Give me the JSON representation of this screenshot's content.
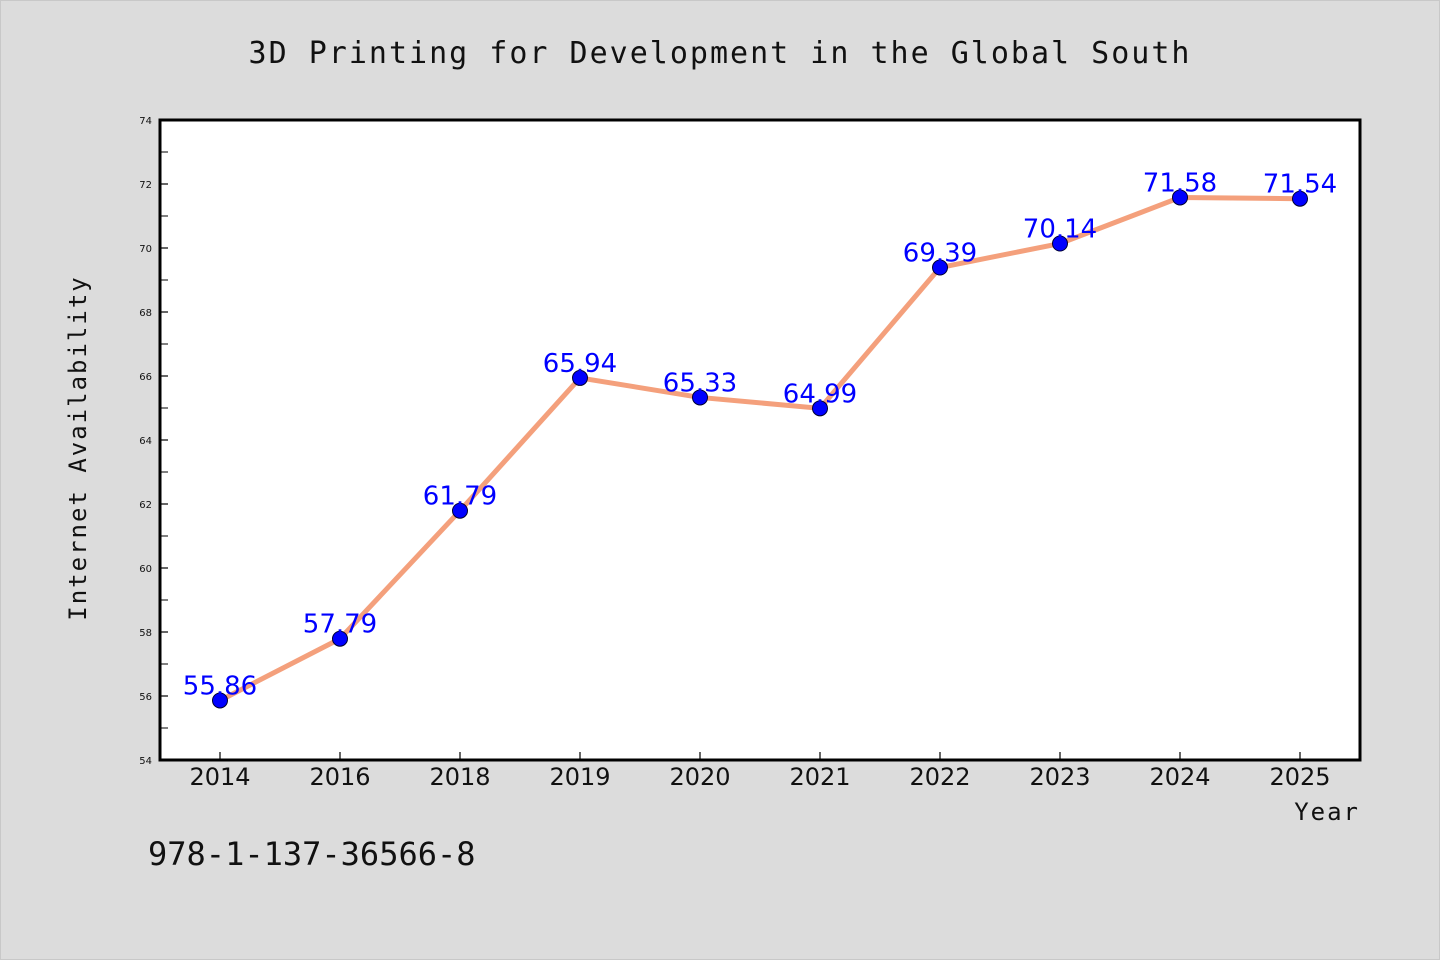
{
  "chart_data": {
    "type": "line",
    "title": "3D Printing for Development in the Global South",
    "xlabel": "Year",
    "ylabel": "Internet Availability",
    "categories": [
      "2014",
      "2016",
      "2018",
      "2019",
      "2020",
      "2021",
      "2022",
      "2023",
      "2024",
      "2025"
    ],
    "values": [
      55.86,
      57.79,
      61.79,
      65.94,
      65.33,
      64.99,
      69.39,
      70.14,
      71.58,
      71.54
    ],
    "data_labels": [
      "55.86",
      "57.79",
      "61.79",
      "65.94",
      "65.33",
      "64.99",
      "69.39",
      "70.14",
      "71.58",
      "71.54"
    ],
    "ylim": [
      54,
      74
    ],
    "yticks": [
      "54",
      "56",
      "58",
      "60",
      "62",
      "64",
      "66",
      "68",
      "70",
      "72",
      "74"
    ],
    "grid": false,
    "legend": "none",
    "line_color": "#f4a07c",
    "marker_color": "#0000ff",
    "label_color": "#0000ff"
  },
  "footer": {
    "isbn": "978-1-137-36566-8"
  }
}
